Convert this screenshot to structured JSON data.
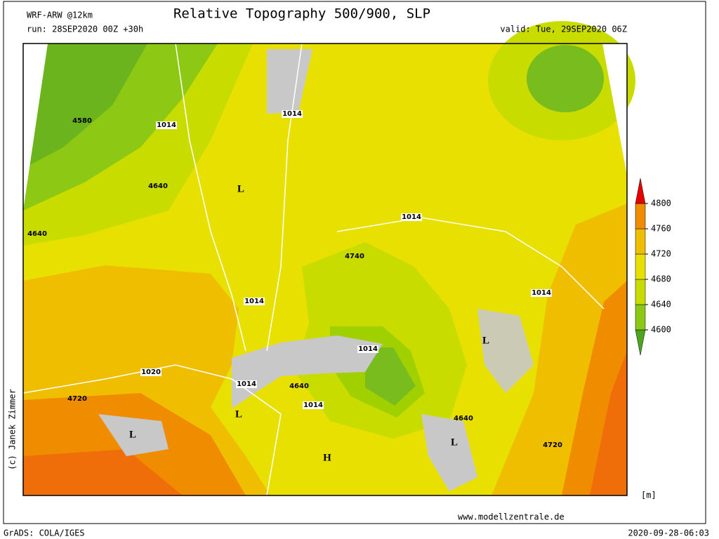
{
  "header": {
    "model": "WRF-ARW @12km",
    "title": "Relative Topography 500/900, SLP",
    "run": "run: 28SEP2020 00Z +30h",
    "valid": "valid: Tue, 29SEP2020 06Z"
  },
  "colorbar": {
    "ticks": [
      4800,
      4760,
      4720,
      4680,
      4640,
      4600
    ],
    "colors": [
      "#4ea51e",
      "#8cc814",
      "#c8dc00",
      "#e8e000",
      "#f0be00",
      "#f08c00",
      "#e60000"
    ],
    "unit": "[m]"
  },
  "map_labels": [
    4580,
    1014,
    4640,
    4640,
    "L",
    1014,
    1014,
    4740,
    1014,
    1014,
    1014,
    1014,
    1020,
    "L",
    4720,
    "L",
    4640,
    1014,
    "H",
    4640,
    "L",
    4720,
    "L"
  ],
  "footer": {
    "credit": "(c) Janek Zimmer",
    "website": "www.modellzentrale.de",
    "source": "GrADS: COLA/IGES",
    "timestamp": "2020-09-28-06:03"
  }
}
